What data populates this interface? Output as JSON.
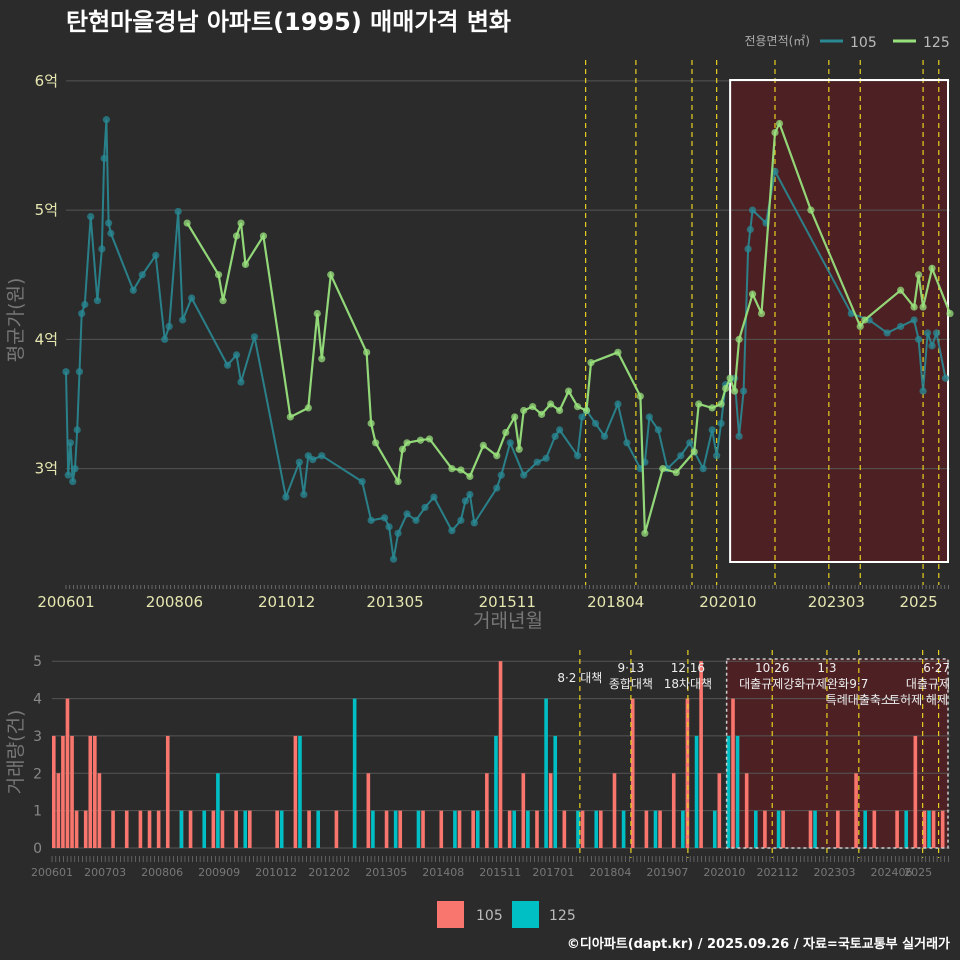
{
  "title": "탄현마을경남 아파트(1995) 매매가격 변화",
  "credit": "©디아파트(dapt.kr) / 2025.09.26 / 자료=국토교통부 실거래가",
  "colors": {
    "background": "#2b2b2c",
    "series_105_line": "#2a8a94",
    "series_125_line": "#98e07c",
    "bar_105": "#f8766d",
    "bar_125": "#00bfc4",
    "policy_line": "#e8d020",
    "highlight": "#5a1f22"
  },
  "chart_data": [
    {
      "type": "line",
      "ylabel": "평균가(원)",
      "xlabel": "거래년월",
      "y_ticks": [
        {
          "value": 3,
          "label": "3억"
        },
        {
          "value": 4,
          "label": "4억"
        },
        {
          "value": 5,
          "label": "5억"
        },
        {
          "value": 6,
          "label": "6억"
        }
      ],
      "ylim": [
        2.1,
        6.2
      ],
      "x_ticks": [
        "200601",
        "200806",
        "201012",
        "201305",
        "201511",
        "201804",
        "202010",
        "202303",
        "2025"
      ],
      "x_range": [
        2006.0,
        2025.7
      ],
      "legend_title": "전용면적(㎡)",
      "legend_position": "top-right",
      "highlight_range": [
        2020.8,
        2025.7
      ],
      "policy_lines": [
        2017.58,
        2018.7,
        2019.95,
        2020.5,
        2021.8,
        2023.0,
        2023.7,
        2025.1,
        2025.45
      ],
      "series": [
        {
          "name": "105",
          "points": [
            [
              2006.0,
              3.75
            ],
            [
              2006.05,
              2.95
            ],
            [
              2006.1,
              3.2
            ],
            [
              2006.15,
              2.9
            ],
            [
              2006.2,
              3.0
            ],
            [
              2006.25,
              3.3
            ],
            [
              2006.3,
              3.75
            ],
            [
              2006.35,
              4.2
            ],
            [
              2006.42,
              4.27
            ],
            [
              2006.55,
              4.95
            ],
            [
              2006.7,
              4.3
            ],
            [
              2006.8,
              4.7
            ],
            [
              2006.85,
              5.4
            ],
            [
              2006.9,
              5.7
            ],
            [
              2006.95,
              4.9
            ],
            [
              2007.0,
              4.82
            ],
            [
              2007.5,
              4.38
            ],
            [
              2007.7,
              4.5
            ],
            [
              2008.0,
              4.65
            ],
            [
              2008.2,
              4.0
            ],
            [
              2008.3,
              4.1
            ],
            [
              2008.5,
              4.99
            ],
            [
              2008.6,
              4.15
            ],
            [
              2008.8,
              4.32
            ],
            [
              2009.6,
              3.8
            ],
            [
              2009.8,
              3.88
            ],
            [
              2009.9,
              3.67
            ],
            [
              2010.2,
              4.02
            ],
            [
              2010.9,
              2.78
            ],
            [
              2011.2,
              3.05
            ],
            [
              2011.3,
              2.8
            ],
            [
              2011.4,
              3.1
            ],
            [
              2011.5,
              3.07
            ],
            [
              2011.7,
              3.1
            ],
            [
              2012.6,
              2.9
            ],
            [
              2012.8,
              2.6
            ],
            [
              2013.1,
              2.62
            ],
            [
              2013.2,
              2.55
            ],
            [
              2013.3,
              2.3
            ],
            [
              2013.4,
              2.5
            ],
            [
              2013.6,
              2.65
            ],
            [
              2013.8,
              2.6
            ],
            [
              2014.0,
              2.7
            ],
            [
              2014.2,
              2.78
            ],
            [
              2014.6,
              2.52
            ],
            [
              2014.8,
              2.6
            ],
            [
              2014.9,
              2.75
            ],
            [
              2015.0,
              2.8
            ],
            [
              2015.1,
              2.58
            ],
            [
              2015.6,
              2.85
            ],
            [
              2015.7,
              2.95
            ],
            [
              2015.9,
              3.2
            ],
            [
              2016.2,
              2.95
            ],
            [
              2016.5,
              3.05
            ],
            [
              2016.7,
              3.08
            ],
            [
              2016.9,
              3.25
            ],
            [
              2017.0,
              3.3
            ],
            [
              2017.4,
              3.1
            ],
            [
              2017.5,
              3.4
            ],
            [
              2017.6,
              3.45
            ],
            [
              2017.8,
              3.35
            ],
            [
              2018.0,
              3.25
            ],
            [
              2018.3,
              3.5
            ],
            [
              2018.5,
              3.2
            ],
            [
              2018.8,
              3.0
            ],
            [
              2018.9,
              3.05
            ],
            [
              2019.0,
              3.4
            ],
            [
              2019.2,
              3.3
            ],
            [
              2019.4,
              3.0
            ],
            [
              2019.7,
              3.1
            ],
            [
              2019.9,
              3.2
            ],
            [
              2020.2,
              3.0
            ],
            [
              2020.4,
              3.3
            ],
            [
              2020.5,
              3.1
            ],
            [
              2020.6,
              3.35
            ],
            [
              2020.7,
              3.65
            ],
            [
              2020.9,
              3.7
            ],
            [
              2021.0,
              3.25
            ],
            [
              2021.1,
              3.6
            ],
            [
              2021.2,
              4.7
            ],
            [
              2021.25,
              4.85
            ],
            [
              2021.3,
              5.0
            ],
            [
              2021.6,
              4.9
            ],
            [
              2021.8,
              5.3
            ],
            [
              2023.5,
              4.2
            ],
            [
              2023.9,
              4.15
            ],
            [
              2024.3,
              4.05
            ],
            [
              2024.6,
              4.1
            ],
            [
              2024.9,
              4.15
            ],
            [
              2025.0,
              4.0
            ],
            [
              2025.1,
              3.6
            ],
            [
              2025.2,
              4.05
            ],
            [
              2025.3,
              3.95
            ],
            [
              2025.4,
              4.05
            ],
            [
              2025.6,
              3.7
            ]
          ]
        },
        {
          "name": "125",
          "points": [
            [
              2008.7,
              4.9
            ],
            [
              2009.4,
              4.5
            ],
            [
              2009.5,
              4.3
            ],
            [
              2009.8,
              4.8
            ],
            [
              2009.9,
              4.9
            ],
            [
              2010.0,
              4.58
            ],
            [
              2010.4,
              4.8
            ],
            [
              2011.0,
              3.4
            ],
            [
              2011.4,
              3.47
            ],
            [
              2011.6,
              4.2
            ],
            [
              2011.7,
              3.85
            ],
            [
              2011.9,
              4.5
            ],
            [
              2012.7,
              3.9
            ],
            [
              2012.8,
              3.35
            ],
            [
              2012.9,
              3.2
            ],
            [
              2013.4,
              2.9
            ],
            [
              2013.5,
              3.15
            ],
            [
              2013.6,
              3.2
            ],
            [
              2013.9,
              3.22
            ],
            [
              2014.1,
              3.23
            ],
            [
              2014.6,
              3.0
            ],
            [
              2014.8,
              2.99
            ],
            [
              2015.0,
              2.94
            ],
            [
              2015.3,
              3.18
            ],
            [
              2015.6,
              3.1
            ],
            [
              2015.8,
              3.28
            ],
            [
              2016.0,
              3.4
            ],
            [
              2016.1,
              3.15
            ],
            [
              2016.2,
              3.45
            ],
            [
              2016.4,
              3.48
            ],
            [
              2016.6,
              3.42
            ],
            [
              2016.8,
              3.5
            ],
            [
              2017.0,
              3.45
            ],
            [
              2017.2,
              3.6
            ],
            [
              2017.4,
              3.48
            ],
            [
              2017.6,
              3.45
            ],
            [
              2017.7,
              3.82
            ],
            [
              2018.3,
              3.9
            ],
            [
              2018.8,
              3.56
            ],
            [
              2018.9,
              2.5
            ],
            [
              2019.3,
              3.0
            ],
            [
              2019.6,
              2.97
            ],
            [
              2020.0,
              3.13
            ],
            [
              2020.1,
              3.5
            ],
            [
              2020.4,
              3.47
            ],
            [
              2020.6,
              3.5
            ],
            [
              2020.7,
              3.62
            ],
            [
              2020.8,
              3.7
            ],
            [
              2020.9,
              3.6
            ],
            [
              2021.0,
              4.0
            ],
            [
              2021.3,
              4.35
            ],
            [
              2021.5,
              4.2
            ],
            [
              2021.8,
              5.6
            ],
            [
              2021.9,
              5.67
            ],
            [
              2022.6,
              5.0
            ],
            [
              2023.7,
              4.1
            ],
            [
              2023.8,
              4.15
            ],
            [
              2024.6,
              4.38
            ],
            [
              2024.9,
              4.25
            ],
            [
              2025.0,
              4.5
            ],
            [
              2025.1,
              4.25
            ],
            [
              2025.3,
              4.55
            ],
            [
              2025.7,
              4.2
            ]
          ]
        }
      ]
    },
    {
      "type": "bar",
      "ylabel": "거래량(건)",
      "y_ticks": [
        0,
        1,
        2,
        3,
        4,
        5
      ],
      "ylim": [
        0,
        5.3
      ],
      "x_ticks": [
        "200601",
        "200703",
        "200806",
        "200909",
        "201012",
        "201202",
        "201305",
        "201408",
        "201511",
        "201701",
        "201804",
        "201907",
        "202010",
        "202112",
        "202303",
        "202406",
        "2025"
      ],
      "x_range": [
        2006.0,
        2025.7
      ],
      "legend_position": "bottom",
      "legend": [
        "105",
        "125"
      ],
      "highlight_range": [
        2020.8,
        2025.7
      ],
      "annotations": [
        {
          "x": 2017.58,
          "lines": [
            "8·2 대책"
          ]
        },
        {
          "x": 2018.7,
          "lines": [
            "9·13",
            "종합대책"
          ]
        },
        {
          "x": 2019.95,
          "lines": [
            "12·16",
            "18차대책"
          ]
        },
        {
          "x": 2021.8,
          "lines": [
            "10·26",
            "대출규제강화"
          ]
        },
        {
          "x": 2023.0,
          "lines": [
            "1·3",
            "규제완화"
          ]
        },
        {
          "x": 2023.7,
          "lines": [
            "",
            "9·7",
            "특례대출축소"
          ]
        },
        {
          "x": 2025.1,
          "lines": [
            "",
            "",
            "토허제 해제"
          ]
        },
        {
          "x": 2025.45,
          "lines": [
            "6·27",
            "대출규제"
          ]
        }
      ],
      "bars_105": [
        [
          2006.0,
          3
        ],
        [
          2006.1,
          2
        ],
        [
          2006.2,
          3
        ],
        [
          2006.3,
          4
        ],
        [
          2006.4,
          3
        ],
        [
          2006.5,
          1
        ],
        [
          2006.7,
          1
        ],
        [
          2006.8,
          3
        ],
        [
          2006.9,
          3
        ],
        [
          2007.0,
          2
        ],
        [
          2007.3,
          1
        ],
        [
          2007.6,
          1
        ],
        [
          2007.9,
          1
        ],
        [
          2008.1,
          1
        ],
        [
          2008.3,
          1
        ],
        [
          2008.5,
          3
        ],
        [
          2008.8,
          1
        ],
        [
          2009.0,
          1
        ],
        [
          2009.5,
          1
        ],
        [
          2009.7,
          1
        ],
        [
          2010.0,
          1
        ],
        [
          2010.3,
          1
        ],
        [
          2010.9,
          1
        ],
        [
          2011.3,
          3
        ],
        [
          2011.6,
          1
        ],
        [
          2012.2,
          1
        ],
        [
          2012.6,
          2
        ],
        [
          2012.9,
          2
        ],
        [
          2013.3,
          1
        ],
        [
          2013.6,
          1
        ],
        [
          2014.1,
          1
        ],
        [
          2014.5,
          1
        ],
        [
          2014.9,
          1
        ],
        [
          2015.2,
          1
        ],
        [
          2015.5,
          2
        ],
        [
          2015.8,
          5
        ],
        [
          2016.0,
          1
        ],
        [
          2016.3,
          2
        ],
        [
          2016.6,
          1
        ],
        [
          2016.9,
          2
        ],
        [
          2017.2,
          1
        ],
        [
          2017.6,
          1
        ],
        [
          2018.0,
          1
        ],
        [
          2018.3,
          2
        ],
        [
          2018.7,
          4
        ],
        [
          2019.0,
          1
        ],
        [
          2019.3,
          1
        ],
        [
          2019.6,
          2
        ],
        [
          2019.9,
          4
        ],
        [
          2020.2,
          5
        ],
        [
          2020.6,
          2
        ],
        [
          2020.9,
          4
        ],
        [
          2021.2,
          2
        ],
        [
          2021.6,
          1
        ],
        [
          2022.0,
          1
        ],
        [
          2022.6,
          1
        ],
        [
          2023.2,
          1
        ],
        [
          2023.6,
          2
        ],
        [
          2024.0,
          1
        ],
        [
          2024.5,
          1
        ],
        [
          2024.9,
          3
        ],
        [
          2025.1,
          1
        ],
        [
          2025.3,
          1
        ],
        [
          2025.5,
          1
        ]
      ],
      "bars_125": [
        [
          2008.8,
          1
        ],
        [
          2009.3,
          1
        ],
        [
          2009.6,
          2
        ],
        [
          2010.2,
          1
        ],
        [
          2011.0,
          1
        ],
        [
          2011.4,
          3
        ],
        [
          2011.8,
          1
        ],
        [
          2012.6,
          4
        ],
        [
          2013.0,
          1
        ],
        [
          2013.5,
          1
        ],
        [
          2014.0,
          1
        ],
        [
          2014.8,
          1
        ],
        [
          2015.3,
          1
        ],
        [
          2015.7,
          3
        ],
        [
          2016.1,
          1
        ],
        [
          2016.4,
          1
        ],
        [
          2016.8,
          4
        ],
        [
          2017.0,
          3
        ],
        [
          2017.5,
          1
        ],
        [
          2017.9,
          1
        ],
        [
          2018.5,
          1
        ],
        [
          2019.2,
          1
        ],
        [
          2019.8,
          1
        ],
        [
          2020.1,
          3
        ],
        [
          2020.5,
          1
        ],
        [
          2020.8,
          3
        ],
        [
          2021.0,
          3
        ],
        [
          2021.4,
          1
        ],
        [
          2021.9,
          1
        ],
        [
          2022.7,
          1
        ],
        [
          2023.8,
          1
        ],
        [
          2024.7,
          1
        ],
        [
          2025.2,
          1
        ]
      ]
    }
  ]
}
